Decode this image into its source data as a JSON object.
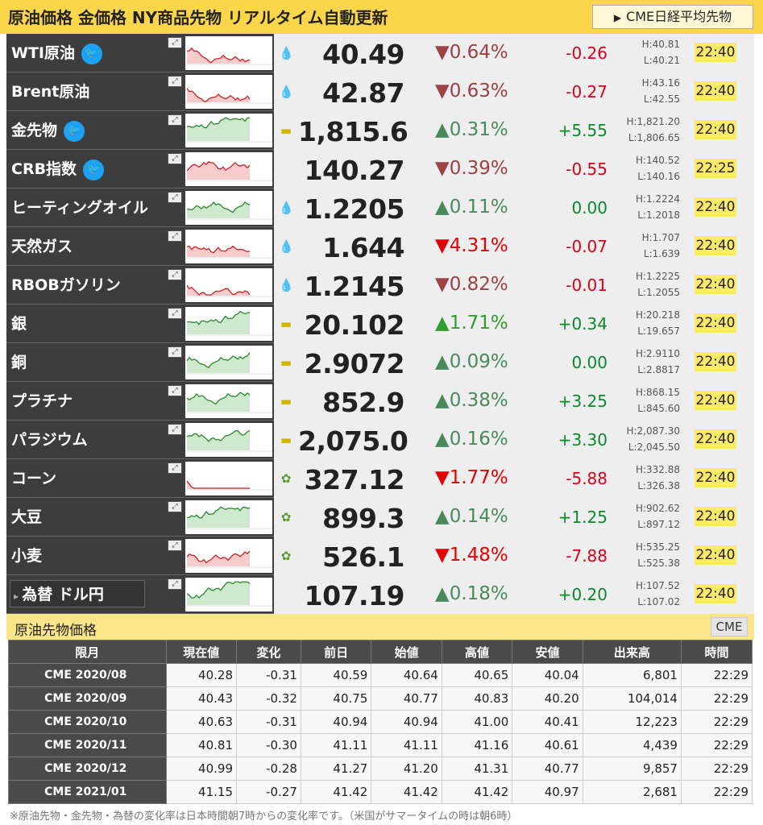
{
  "header": {
    "title": "原油価格 金価格 NY商品先物 リアルタイム自動更新",
    "cme_button": "CME日経平均先物"
  },
  "colors": {
    "accent": "#fbd54a",
    "up": "#2e9d2e",
    "down": "#e60000",
    "time_bg": "#fbe96a"
  },
  "rows": [
    {
      "name": "WTI原油",
      "twitter": true,
      "icon": "oil-drop",
      "price": "40.49",
      "dir": "down",
      "pct": "▼0.64%",
      "pct_style": "down-muted",
      "chg": "-0.26",
      "chg_style": "red",
      "high": "H:40.81",
      "low": "L:40.21",
      "time": "22:40"
    },
    {
      "name": "Brent原油",
      "twitter": false,
      "icon": "oil-drop",
      "price": "42.87",
      "dir": "down",
      "pct": "▼0.63%",
      "pct_style": "down-muted",
      "chg": "-0.27",
      "chg_style": "red",
      "high": "H:43.16",
      "low": "L:42.55",
      "time": "22:40"
    },
    {
      "name": "金先物",
      "twitter": true,
      "icon": "gold-bar",
      "price": "1,815.6",
      "dir": "up",
      "pct": "▲0.31%",
      "pct_style": "up-muted",
      "chg": "+5.55",
      "chg_style": "green",
      "high": "H:1,821.20",
      "low": "L:1,806.65",
      "time": "22:40"
    },
    {
      "name": "CRB指数",
      "twitter": true,
      "icon": "",
      "price": "140.27",
      "dir": "down",
      "pct": "▼0.39%",
      "pct_style": "down-muted",
      "chg": "-0.55",
      "chg_style": "red",
      "high": "H:140.52",
      "low": "L:140.16",
      "time": "22:25"
    },
    {
      "name": "ヒーティングオイル",
      "twitter": false,
      "icon": "oil-drop",
      "price": "1.2205",
      "dir": "up",
      "pct": "▲0.11%",
      "pct_style": "up-muted",
      "chg": "0.00",
      "chg_style": "green",
      "high": "H:1.2224",
      "low": "L:1.2018",
      "time": "22:40"
    },
    {
      "name": "天然ガス",
      "twitter": false,
      "icon": "oil-drop",
      "price": "1.644",
      "dir": "down",
      "pct": "▼4.31%",
      "pct_style": "down-strong",
      "chg": "-0.07",
      "chg_style": "red",
      "high": "H:1.707",
      "low": "L:1.639",
      "time": "22:40"
    },
    {
      "name": "RBOBガソリン",
      "twitter": false,
      "icon": "oil-drop",
      "price": "1.2145",
      "dir": "down",
      "pct": "▼0.82%",
      "pct_style": "down-muted",
      "chg": "-0.01",
      "chg_style": "red",
      "high": "H:1.2225",
      "low": "L:1.2055",
      "time": "22:40"
    },
    {
      "name": "銀",
      "twitter": false,
      "icon": "gold-bar",
      "price": "20.102",
      "dir": "up",
      "pct": "▲1.71%",
      "pct_style": "up",
      "chg": "+0.34",
      "chg_style": "green",
      "high": "H:20.218",
      "low": "L:19.657",
      "time": "22:40"
    },
    {
      "name": "銅",
      "twitter": false,
      "icon": "gold-bar",
      "price": "2.9072",
      "dir": "up",
      "pct": "▲0.09%",
      "pct_style": "up-muted",
      "chg": "0.00",
      "chg_style": "green",
      "high": "H:2.9110",
      "low": "L:2.8817",
      "time": "22:40"
    },
    {
      "name": "プラチナ",
      "twitter": false,
      "icon": "gold-bar",
      "price": "852.9",
      "dir": "up",
      "pct": "▲0.38%",
      "pct_style": "up-muted",
      "chg": "+3.25",
      "chg_style": "green",
      "high": "H:868.15",
      "low": "L:845.60",
      "time": "22:40"
    },
    {
      "name": "パラジウム",
      "twitter": false,
      "icon": "gold-bar",
      "price": "2,075.0",
      "dir": "up",
      "pct": "▲0.16%",
      "pct_style": "up-muted",
      "chg": "+3.30",
      "chg_style": "green",
      "high": "H:2,087.30",
      "low": "L:2,045.50",
      "time": "22:40"
    },
    {
      "name": "コーン",
      "twitter": false,
      "icon": "wheat",
      "price": "327.12",
      "dir": "down",
      "pct": "▼1.77%",
      "pct_style": "down-strong",
      "chg": "-5.88",
      "chg_style": "red",
      "high": "H:332.88",
      "low": "L:326.38",
      "time": "22:40"
    },
    {
      "name": "大豆",
      "twitter": false,
      "icon": "wheat",
      "price": "899.3",
      "dir": "up",
      "pct": "▲0.14%",
      "pct_style": "up-muted",
      "chg": "+1.25",
      "chg_style": "green",
      "high": "H:902.62",
      "low": "L:897.12",
      "time": "22:40"
    },
    {
      "name": "小麦",
      "twitter": false,
      "icon": "wheat",
      "price": "526.1",
      "dir": "down",
      "pct": "▼1.48%",
      "pct_style": "down-strong",
      "chg": "-7.88",
      "chg_style": "red",
      "high": "H:535.25",
      "low": "L:525.38",
      "time": "22:40"
    },
    {
      "name": "為替 ドル円",
      "twitter": false,
      "icon": "",
      "price": "107.19",
      "dir": "up",
      "pct": "▲0.18%",
      "pct_style": "up-muted",
      "chg": "+0.20",
      "chg_style": "green",
      "high": "H:107.52",
      "low": "L:107.02",
      "time": "22:40",
      "fx": true
    }
  ],
  "futures": {
    "title": "原油先物価格",
    "tag": "CME",
    "columns": [
      "限月",
      "現在値",
      "変化",
      "前日",
      "始値",
      "高値",
      "安値",
      "出来高",
      "時間"
    ],
    "rows": [
      [
        "CME 2020/08",
        "40.28",
        "-0.31",
        "40.59",
        "40.64",
        "40.65",
        "40.04",
        "6,801",
        "22:29"
      ],
      [
        "CME 2020/09",
        "40.43",
        "-0.32",
        "40.75",
        "40.77",
        "40.83",
        "40.20",
        "104,014",
        "22:29"
      ],
      [
        "CME 2020/10",
        "40.63",
        "-0.31",
        "40.94",
        "40.94",
        "41.00",
        "40.41",
        "12,223",
        "22:29"
      ],
      [
        "CME 2020/11",
        "40.81",
        "-0.30",
        "41.11",
        "41.11",
        "41.16",
        "40.61",
        "4,439",
        "22:29"
      ],
      [
        "CME 2020/12",
        "40.99",
        "-0.28",
        "41.27",
        "41.20",
        "41.31",
        "40.77",
        "9,857",
        "22:29"
      ],
      [
        "CME 2021/01",
        "41.15",
        "-0.27",
        "41.42",
        "41.42",
        "41.42",
        "40.97",
        "2,681",
        "22:29"
      ]
    ]
  },
  "note": "※原油先物・金先物・為替の変化率は日本時間朝7時からの変化率です。（米国がサマータイムの時は朝6時）"
}
